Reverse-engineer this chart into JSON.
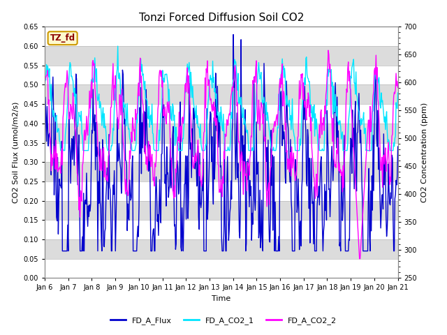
{
  "title": "Tonzi Forced Diffusion Soil CO2",
  "ylabel_left": "CO2 Soil Flux (umol/m2/s)",
  "ylabel_right": "CO2 Concentration (ppm)",
  "xlabel": "Time",
  "ylim_left": [
    0.0,
    0.65
  ],
  "ylim_right": [
    250,
    700
  ],
  "legend_labels": [
    "FD_A_Flux",
    "FD_A_CO2_1",
    "FD_A_CO2_2"
  ],
  "colors": [
    "#0000cd",
    "#00e5ff",
    "#ff00ff"
  ],
  "linewidths": [
    1.0,
    1.0,
    1.0
  ],
  "site_label": "TZ_fd",
  "site_label_color": "#8B0000",
  "site_label_bg": "#fffacd",
  "site_label_edge": "#cc9900",
  "background_color": "#ffffff",
  "band_colors_alt": [
    "#ffffff",
    "#dcdcdc"
  ],
  "yticks_left": [
    0.0,
    0.05,
    0.1,
    0.15,
    0.2,
    0.25,
    0.3,
    0.35,
    0.4,
    0.45,
    0.5,
    0.55,
    0.6,
    0.65
  ],
  "yticks_right": [
    250,
    300,
    350,
    400,
    450,
    500,
    550,
    600,
    650,
    700
  ],
  "xtick_labels": [
    "Jan 6",
    "Jan 7",
    "Jan 8",
    "Jan 9",
    "Jan 10",
    "Jan 11",
    "Jan 12",
    "Jan 13",
    "Jan 14",
    "Jan 15",
    "Jan 16",
    "Jan 17",
    "Jan 18",
    "Jan 19",
    "Jan 20",
    "Jan 21"
  ],
  "n_points": 600,
  "title_fontsize": 11,
  "axis_label_fontsize": 8,
  "tick_fontsize": 7,
  "legend_fontsize": 8
}
